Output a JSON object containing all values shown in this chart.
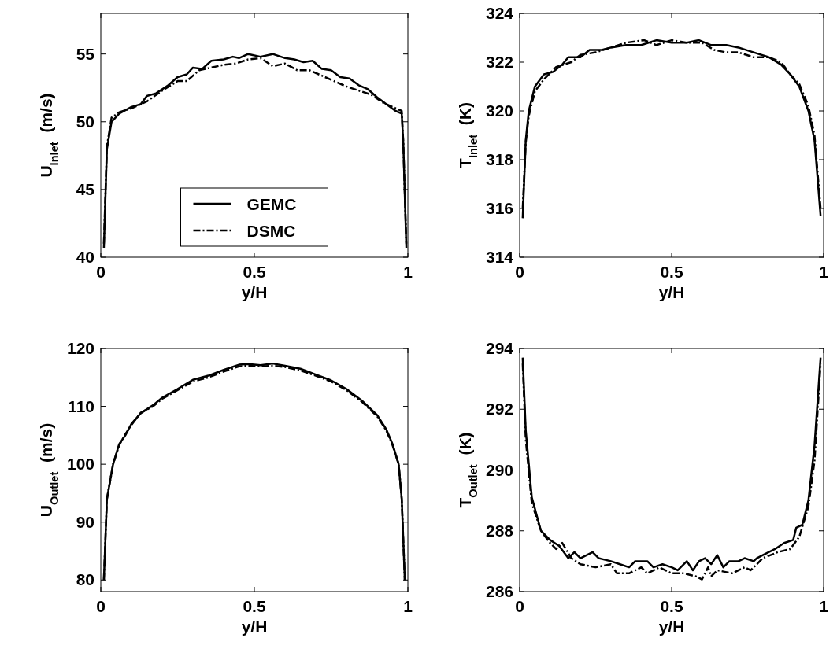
{
  "chart_data": [
    {
      "type": "line",
      "xlabel": "y/H",
      "ylabel": "U$_{Inlet}$  (m/s)",
      "xlim": [
        0,
        1
      ],
      "xticks": [
        0,
        0.5,
        1
      ],
      "ylim": [
        40,
        58
      ],
      "yticks": [
        40,
        45,
        50,
        55
      ],
      "legend": "bottom",
      "grid": false,
      "series": [
        {
          "name": "GEMC",
          "color": "#000000",
          "line_style": "solid",
          "x": [
            0.01,
            0.02,
            0.035,
            0.06,
            0.1,
            0.13,
            0.15,
            0.18,
            0.22,
            0.25,
            0.28,
            0.3,
            0.33,
            0.36,
            0.4,
            0.43,
            0.45,
            0.48,
            0.52,
            0.56,
            0.6,
            0.63,
            0.66,
            0.69,
            0.72,
            0.75,
            0.78,
            0.81,
            0.84,
            0.87,
            0.9,
            0.93,
            0.96,
            0.98,
            0.985,
            0.995
          ],
          "values": [
            40.7,
            48,
            50,
            50.6,
            51.1,
            51.3,
            51.9,
            52.1,
            52.7,
            53.3,
            53.5,
            54,
            53.9,
            54.5,
            54.6,
            54.8,
            54.7,
            55,
            54.8,
            55,
            54.7,
            54.6,
            54.4,
            54.5,
            53.9,
            53.8,
            53.3,
            53.2,
            52.7,
            52.4,
            51.8,
            51.3,
            50.8,
            50.6,
            48.5,
            40.7
          ]
        },
        {
          "name": "DSMC",
          "color": "#000000",
          "line_style": "dashdot",
          "x": [
            0.01,
            0.02,
            0.035,
            0.06,
            0.1,
            0.15,
            0.2,
            0.25,
            0.28,
            0.32,
            0.36,
            0.4,
            0.44,
            0.48,
            0.52,
            0.56,
            0.6,
            0.64,
            0.68,
            0.72,
            0.76,
            0.8,
            0.84,
            0.88,
            0.92,
            0.96,
            0.98,
            0.985,
            0.995
          ],
          "values": [
            41,
            48.2,
            50.3,
            50.7,
            51,
            51.5,
            52.3,
            53,
            53,
            53.8,
            54,
            54.2,
            54.3,
            54.6,
            54.7,
            54.1,
            54.3,
            53.8,
            53.8,
            53.4,
            53,
            52.6,
            52.3,
            52,
            51.4,
            51,
            50.8,
            48.5,
            41
          ]
        }
      ]
    },
    {
      "type": "line",
      "xlabel": "y/H",
      "ylabel": "T$_{Inlet}$  (K)",
      "xlim": [
        0,
        1
      ],
      "xticks": [
        0,
        0.5,
        1
      ],
      "ylim": [
        314,
        324
      ],
      "yticks": [
        314,
        316,
        318,
        320,
        322,
        324
      ],
      "grid": false,
      "series": [
        {
          "color": "#000000",
          "line_style": "solid",
          "x": [
            0.01,
            0.02,
            0.03,
            0.05,
            0.08,
            0.11,
            0.14,
            0.16,
            0.2,
            0.23,
            0.27,
            0.3,
            0.35,
            0.4,
            0.45,
            0.5,
            0.55,
            0.59,
            0.63,
            0.68,
            0.72,
            0.77,
            0.82,
            0.86,
            0.89,
            0.92,
            0.95,
            0.97,
            0.99
          ],
          "values": [
            315.6,
            318.8,
            320,
            321,
            321.5,
            321.6,
            321.9,
            322.2,
            322.2,
            322.5,
            322.5,
            322.6,
            322.7,
            322.7,
            322.9,
            322.8,
            322.8,
            322.9,
            322.7,
            322.7,
            322.6,
            322.4,
            322.2,
            321.9,
            321.5,
            321,
            320,
            318.8,
            315.7
          ]
        },
        {
          "color": "#000000",
          "line_style": "dashdot",
          "x": [
            0.01,
            0.02,
            0.03,
            0.05,
            0.08,
            0.12,
            0.17,
            0.2,
            0.25,
            0.3,
            0.35,
            0.41,
            0.45,
            0.5,
            0.55,
            0.6,
            0.64,
            0.68,
            0.72,
            0.77,
            0.82,
            0.86,
            0.89,
            0.92,
            0.95,
            0.97,
            0.99
          ],
          "values": [
            316,
            318.7,
            319.8,
            320.8,
            321.3,
            321.8,
            322,
            322.3,
            322.4,
            322.6,
            322.8,
            322.9,
            322.7,
            322.9,
            322.8,
            322.8,
            322.5,
            322.4,
            322.4,
            322.2,
            322.2,
            322,
            321.5,
            321.1,
            320.2,
            319,
            316
          ]
        }
      ]
    },
    {
      "type": "line",
      "xlabel": "y/H",
      "ylabel": "U$_{Outlet}$  (m/s)",
      "xlim": [
        0,
        1
      ],
      "xticks": [
        0,
        0.5,
        1
      ],
      "ylim": [
        78,
        120
      ],
      "yticks": [
        80,
        90,
        100,
        110,
        120
      ],
      "grid": false,
      "series": [
        {
          "color": "#000000",
          "line_style": "solid",
          "x": [
            0.01,
            0.02,
            0.04,
            0.06,
            0.08,
            0.1,
            0.13,
            0.17,
            0.2,
            0.25,
            0.3,
            0.35,
            0.4,
            0.45,
            0.48,
            0.52,
            0.56,
            0.6,
            0.65,
            0.7,
            0.75,
            0.8,
            0.85,
            0.9,
            0.93,
            0.95,
            0.97,
            0.98,
            0.99
          ],
          "values": [
            80,
            94,
            100,
            103.5,
            105,
            107,
            108.8,
            110.2,
            111.5,
            113,
            114.6,
            115.3,
            116.3,
            117.2,
            117.3,
            117.1,
            117.4,
            117,
            116.5,
            115.5,
            114.5,
            113,
            111,
            108.5,
            106,
            103.5,
            100,
            94,
            80
          ]
        },
        {
          "color": "#000000",
          "line_style": "dashdot",
          "x": [
            0.01,
            0.02,
            0.04,
            0.06,
            0.08,
            0.1,
            0.13,
            0.17,
            0.2,
            0.25,
            0.3,
            0.35,
            0.4,
            0.45,
            0.48,
            0.52,
            0.56,
            0.6,
            0.65,
            0.7,
            0.75,
            0.8,
            0.85,
            0.9,
            0.93,
            0.95,
            0.97,
            0.98,
            0.99
          ],
          "values": [
            80,
            94,
            100,
            103.3,
            105.2,
            106.8,
            108.9,
            110,
            111.3,
            112.8,
            114.3,
            115,
            116,
            116.9,
            117,
            116.9,
            117,
            116.8,
            116.2,
            115.3,
            114.3,
            112.8,
            110.8,
            108.3,
            105.8,
            103.3,
            100,
            94,
            80
          ]
        }
      ]
    },
    {
      "type": "line",
      "xlabel": "y/H",
      "ylabel": "T$_{Outlet}$  (K)",
      "xlim": [
        0,
        1
      ],
      "xticks": [
        0,
        0.5,
        1
      ],
      "ylim": [
        286,
        294
      ],
      "yticks": [
        286,
        288,
        290,
        292,
        294
      ],
      "grid": false,
      "series": [
        {
          "color": "#000000",
          "line_style": "solid",
          "x": [
            0.01,
            0.02,
            0.04,
            0.07,
            0.1,
            0.13,
            0.16,
            0.18,
            0.2,
            0.24,
            0.26,
            0.3,
            0.33,
            0.36,
            0.38,
            0.42,
            0.44,
            0.47,
            0.5,
            0.52,
            0.55,
            0.57,
            0.59,
            0.61,
            0.63,
            0.65,
            0.67,
            0.69,
            0.72,
            0.74,
            0.77,
            0.78,
            0.8,
            0.84,
            0.87,
            0.9,
            0.91,
            0.93,
            0.95,
            0.97,
            0.99
          ],
          "values": [
            293.7,
            291.3,
            289.1,
            288,
            287.7,
            287.5,
            287.1,
            287.3,
            287.1,
            287.3,
            287.1,
            287,
            286.9,
            286.8,
            287,
            287,
            286.8,
            286.9,
            286.8,
            286.7,
            287,
            286.7,
            287,
            287.1,
            286.9,
            287.2,
            286.8,
            287,
            287,
            287.1,
            287,
            287.1,
            287.2,
            287.4,
            287.6,
            287.7,
            288.1,
            288.2,
            289,
            290.8,
            293.7
          ]
        },
        {
          "color": "#000000",
          "line_style": "dashdot",
          "x": [
            0.01,
            0.02,
            0.04,
            0.07,
            0.1,
            0.12,
            0.14,
            0.17,
            0.2,
            0.25,
            0.3,
            0.32,
            0.36,
            0.4,
            0.42,
            0.46,
            0.5,
            0.54,
            0.58,
            0.6,
            0.62,
            0.63,
            0.65,
            0.7,
            0.74,
            0.76,
            0.8,
            0.85,
            0.89,
            0.92,
            0.95,
            0.97,
            0.99
          ],
          "values": [
            293.5,
            291,
            288.9,
            288,
            287.6,
            287.4,
            287.6,
            287.1,
            286.9,
            286.8,
            286.9,
            286.6,
            286.6,
            286.8,
            286.6,
            286.8,
            286.6,
            286.6,
            286.5,
            286.4,
            286.8,
            286.5,
            286.7,
            286.6,
            286.8,
            286.7,
            287.1,
            287.3,
            287.4,
            287.8,
            288.8,
            290.3,
            293.5
          ]
        }
      ]
    }
  ]
}
